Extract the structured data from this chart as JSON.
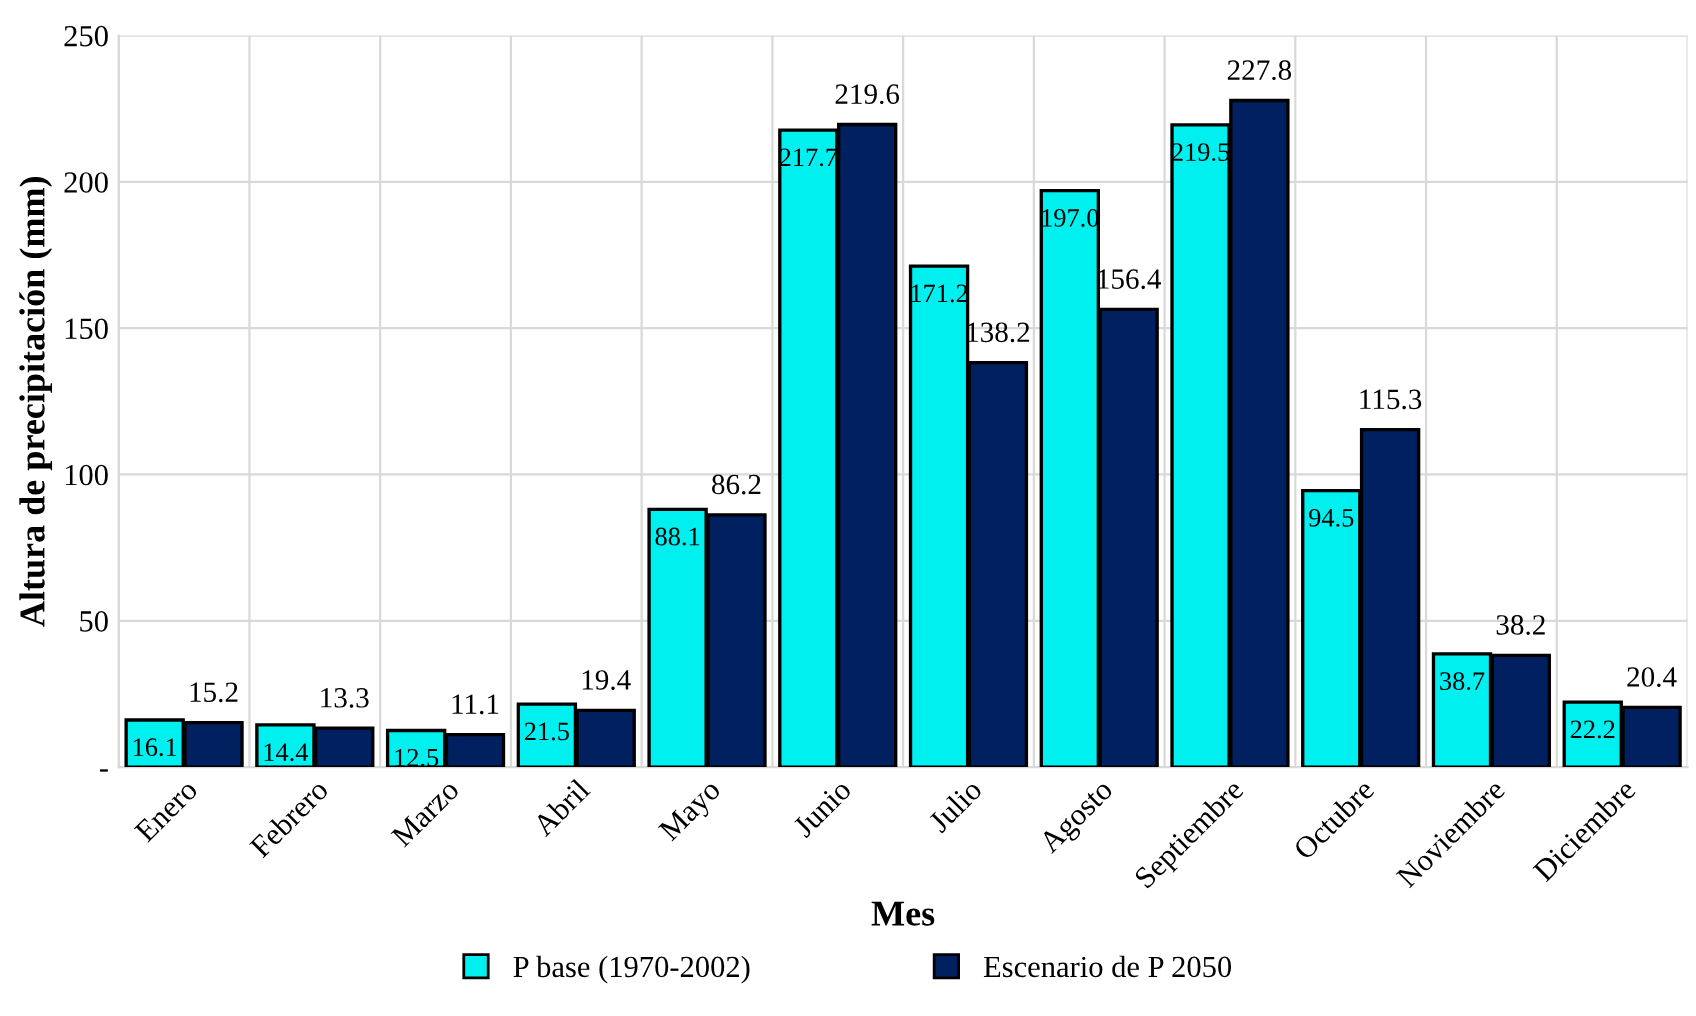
{
  "chart_data": {
    "type": "bar",
    "xlabel": "Mes",
    "ylabel": "Altura de precipitación (mm)",
    "categories": [
      "Enero",
      "Febrero",
      "Marzo",
      "Abril",
      "Mayo",
      "Junio",
      "Julio",
      "Agosto",
      "Septiembre",
      "Octubre",
      "Noviembre",
      "Diciembre"
    ],
    "series": [
      {
        "name": "P base (1970-2002)",
        "color": "#00f0f0",
        "values": [
          16.1,
          14.4,
          12.5,
          21.5,
          88.1,
          217.7,
          171.2,
          197.0,
          219.5,
          94.5,
          38.7,
          22.2
        ],
        "value_labels": [
          "16.1",
          "14.4",
          "12.5",
          "21.5",
          "88.1",
          "217.7",
          "171.2",
          "197.0",
          "219.5",
          "94.5",
          "38.7",
          "22.2"
        ]
      },
      {
        "name": "Escenario de P 2050",
        "color": "#002060",
        "values": [
          15.2,
          13.3,
          11.1,
          19.4,
          86.2,
          219.6,
          138.2,
          156.4,
          227.8,
          115.3,
          38.2,
          20.4
        ],
        "value_labels": [
          "15.2",
          "13.3",
          "11.1",
          "19.4",
          "86.2",
          "219.6",
          "138.2",
          "156.4",
          "227.8",
          "115.3",
          "38.2",
          "20.4"
        ]
      }
    ],
    "ylim": [
      0,
      250
    ],
    "yticks": [
      {
        "value": 0,
        "label": "-"
      },
      50,
      100,
      150,
      200,
      250
    ],
    "grid": true,
    "legend": "bottom"
  }
}
